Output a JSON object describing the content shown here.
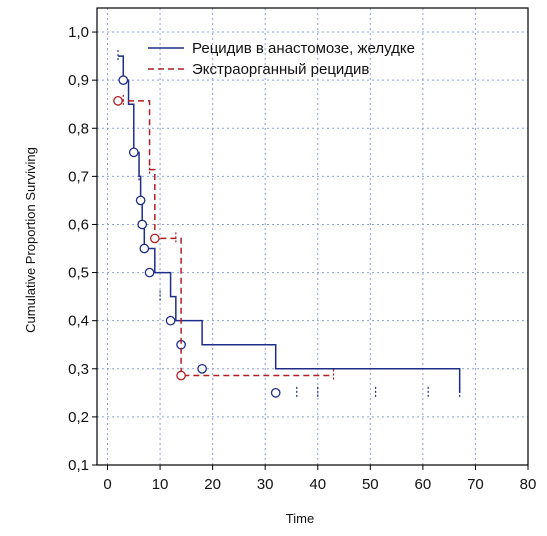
{
  "chart_data": {
    "type": "line",
    "title": "",
    "xlabel": "Time",
    "ylabel": "Cumulative Proportion Surviving",
    "xlim": [
      -2,
      80
    ],
    "ylim": [
      0.1,
      1.05
    ],
    "x_ticks": [
      "0",
      "10",
      "20",
      "30",
      "40",
      "50",
      "60",
      "70",
      "80"
    ],
    "x_tick_values": [
      0,
      10,
      20,
      30,
      40,
      50,
      60,
      70,
      80
    ],
    "y_ticks": [
      "0,1",
      "0,2",
      "0,3",
      "0,4",
      "0,5",
      "0,6",
      "0,7",
      "0,8",
      "0,9",
      "1,0"
    ],
    "y_tick_values": [
      0.1,
      0.2,
      0.3,
      0.4,
      0.5,
      0.6,
      0.7,
      0.8,
      0.9,
      1.0
    ],
    "grid": true,
    "legend_position": "top-right",
    "series": [
      {
        "name": "Рецидив в анастомозе, желудке",
        "color": "#1f2d8a",
        "dash": "solid",
        "step_x": [
          2,
          3,
          4,
          5,
          6,
          6.3,
          6.6,
          7,
          9,
          12,
          13,
          18,
          32,
          67
        ],
        "step_y": [
          0.95,
          0.9,
          0.85,
          0.75,
          0.7,
          0.65,
          0.6,
          0.55,
          0.5,
          0.45,
          0.4,
          0.35,
          0.3,
          0.25
        ],
        "events_x": [
          3,
          5,
          6.3,
          6.6,
          7,
          8,
          12,
          14,
          18,
          32
        ],
        "events_y": [
          0.9,
          0.75,
          0.65,
          0.6,
          0.55,
          0.5,
          0.4,
          0.35,
          0.3,
          0.25
        ],
        "censored_x": [
          2,
          6,
          10,
          36,
          40,
          51,
          61,
          67
        ],
        "censored_y": [
          0.95,
          0.7,
          0.45,
          0.25,
          0.25,
          0.25,
          0.25,
          0.25
        ]
      },
      {
        "name": "Экстраорганный рецидив",
        "color": "#b01e23",
        "dash": "dashed",
        "step_x": [
          2,
          3,
          8,
          9,
          14,
          43
        ],
        "step_y": [
          0.857,
          0.857,
          0.714,
          0.571,
          0.286,
          0.286
        ],
        "events_x": [
          2,
          9,
          14
        ],
        "events_y": [
          0.857,
          0.571,
          0.286
        ],
        "censored_x": [
          3,
          8,
          13,
          43
        ],
        "censored_y": [
          0.857,
          0.714,
          0.571,
          0.286
        ]
      }
    ]
  }
}
